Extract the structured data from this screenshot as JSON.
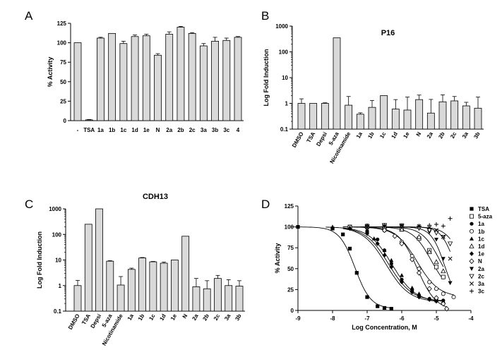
{
  "chart_data": [
    {
      "panel": "A",
      "type": "bar",
      "title": "",
      "xlabel": "",
      "ylabel": "% Activity",
      "ylim": [
        0,
        125
      ],
      "yticks": [
        "0",
        "25",
        "50",
        "75",
        "100",
        "125"
      ],
      "categories": [
        "-",
        "TSA",
        "1a",
        "1b",
        "1c",
        "1d",
        "1e",
        "N",
        "2a",
        "2b",
        "2c",
        "3a",
        "3b",
        "3c",
        "4"
      ],
      "values": [
        100,
        1,
        106,
        112,
        99,
        108,
        109,
        84,
        111,
        120,
        112,
        96,
        102,
        103,
        107
      ],
      "errors": [
        0,
        0.5,
        1,
        0,
        3,
        2,
        2,
        2,
        3,
        1,
        1,
        3,
        5,
        3,
        1
      ]
    },
    {
      "panel": "B",
      "type": "bar",
      "title": "P16",
      "xlabel": "",
      "ylabel": "Log Fold Induction",
      "yscale": "log",
      "ylim": [
        0.1,
        1000
      ],
      "yticks": [
        "0.1",
        "1",
        "10",
        "100",
        "1000"
      ],
      "categories": [
        "DMSO",
        "TSA",
        "Depsi",
        "5-aza",
        "Nicotinamide",
        "1a",
        "1b",
        "1c",
        "1d",
        "1e",
        "N",
        "2a",
        "2b",
        "2c",
        "3a",
        "3b"
      ],
      "values": [
        1.0,
        1.0,
        1.0,
        350,
        0.85,
        0.38,
        0.7,
        2.0,
        0.6,
        0.55,
        1.4,
        0.42,
        1.15,
        1.25,
        0.8,
        0.65
      ],
      "errors": [
        0.5,
        0,
        0.05,
        0,
        1.0,
        0.05,
        0.6,
        0,
        0.8,
        1.2,
        0.7,
        1.0,
        1.0,
        0.6,
        0.3,
        1.1
      ]
    },
    {
      "panel": "C",
      "type": "bar",
      "title": "CDH13",
      "xlabel": "",
      "ylabel": "Log Fold Induction",
      "yscale": "log",
      "ylim": [
        0.1,
        1000
      ],
      "yticks": [
        "0.1",
        "1",
        "10",
        "100",
        "1000"
      ],
      "categories": [
        "DMSO",
        "TSA",
        "Depsi",
        "5-aza",
        "Nicotinamide",
        "1a",
        "1b",
        "1c",
        "1d",
        "1e",
        "N",
        "2a",
        "2b",
        "2c",
        "3a",
        "3b"
      ],
      "values": [
        1.0,
        250,
        1000,
        9,
        1.05,
        4.3,
        12,
        8.5,
        7.5,
        10,
        85,
        0.9,
        0.75,
        1.9,
        1.0,
        0.95
      ],
      "errors": [
        0.6,
        0,
        0,
        0.4,
        1.2,
        0.5,
        0.5,
        0.3,
        0.8,
        0,
        0,
        1.0,
        0.8,
        0.6,
        0.7,
        0.6
      ]
    },
    {
      "panel": "D",
      "type": "scatter",
      "title": "",
      "xlabel": "Log Concentration, M",
      "ylabel": "% Activity",
      "xlim": [
        -9,
        -4
      ],
      "ylim": [
        0,
        125
      ],
      "xticks": [
        "-9",
        "-8",
        "-7",
        "-6",
        "-5",
        "-4"
      ],
      "yticks": [
        "0",
        "25",
        "50",
        "75",
        "100",
        "125"
      ],
      "series": [
        {
          "name": "TSA",
          "marker": "square-filled",
          "x": [
            -9,
            -8,
            -7.7,
            -7.5,
            -7.3,
            -7,
            -6.7,
            -6.5,
            -6.3
          ],
          "y": [
            100,
            98,
            91,
            74,
            45,
            16,
            5,
            3,
            2
          ],
          "fit": {
            "top": 100,
            "bottom": 2,
            "logic50": -7.35,
            "hill": 1.9
          }
        },
        {
          "name": "5-aza",
          "marker": "square-open",
          "x": [
            -7.5,
            -7,
            -6.5,
            -6,
            -5.5,
            -5.2,
            -5,
            -4.8
          ],
          "y": [
            100,
            101,
            100,
            97,
            86,
            72,
            52,
            40
          ],
          "fit": {
            "top": 100,
            "bottom": 20,
            "logic50": -5.15,
            "hill": 1.6
          }
        },
        {
          "name": "1a",
          "marker": "circle-filled",
          "x": [
            -7.5,
            -7,
            -6.7,
            -6.5,
            -6.3,
            -6,
            -5.7,
            -5.5,
            -5.2,
            -5,
            -4.8
          ],
          "y": [
            99,
            95,
            85,
            72,
            56,
            37,
            24,
            18,
            14,
            13,
            12
          ],
          "fit": {
            "top": 100,
            "bottom": 11,
            "logic50": -6.38,
            "hill": 1.3
          }
        },
        {
          "name": "1b",
          "marker": "circle-open",
          "x": [
            -7.5,
            -7,
            -6.5,
            -6,
            -5.7,
            -5.5,
            -5.2,
            -5,
            -4.8,
            -4.5
          ],
          "y": [
            100,
            99,
            96,
            82,
            65,
            50,
            34,
            26,
            20,
            16
          ],
          "fit": {
            "top": 100,
            "bottom": 16,
            "logic50": -5.55,
            "hill": 1.4
          }
        },
        {
          "name": "1c",
          "marker": "triangle-up-filled",
          "x": [
            -8,
            -7.5,
            -7,
            -6.8,
            -6.5,
            -6.3,
            -6,
            -5.7,
            -5.5,
            -5.2,
            -5,
            -4.8
          ],
          "y": [
            100,
            99,
            95,
            86,
            72,
            60,
            42,
            27,
            20,
            14,
            12,
            11
          ],
          "fit": {
            "top": 100,
            "bottom": 10,
            "logic50": -6.28,
            "hill": 1.3
          }
        },
        {
          "name": "1d",
          "marker": "triangle-up-open",
          "x": [
            -7,
            -6.5,
            -6,
            -5.5,
            -5.2,
            -5,
            -4.8
          ],
          "y": [
            101,
            100,
            97,
            88,
            70,
            58,
            47
          ],
          "fit": {
            "top": 100,
            "bottom": 20,
            "logic50": -4.9,
            "hill": 1.7
          }
        },
        {
          "name": "1e",
          "marker": "diamond-filled",
          "x": [
            -7.5,
            -7,
            -6.7,
            -6.5,
            -6.3,
            -6,
            -5.7,
            -5.5,
            -5.2,
            -5
          ],
          "y": [
            98,
            92,
            80,
            66,
            52,
            34,
            22,
            16,
            13,
            11
          ],
          "fit": {
            "top": 100,
            "bottom": 10,
            "logic50": -6.45,
            "hill": 1.3
          }
        },
        {
          "name": "N",
          "marker": "diamond-open",
          "x": [
            -7,
            -6.5,
            -6.2,
            -6,
            -5.7,
            -5.5,
            -5.2,
            -5,
            -4.8,
            -4.7
          ],
          "y": [
            99,
            96,
            89,
            80,
            61,
            45,
            26,
            15,
            8,
            2
          ],
          "fit": {
            "top": 100,
            "bottom": 0,
            "logic50": -5.55,
            "hill": 1.6
          }
        },
        {
          "name": "2a",
          "marker": "triangle-down-filled",
          "x": [
            -7,
            -6.5,
            -6,
            -5.5,
            -5.2,
            -5,
            -4.8,
            -4.6
          ],
          "y": [
            100,
            101,
            100,
            98,
            94,
            85,
            62,
            33
          ],
          "fit": {
            "top": 100,
            "bottom": 5,
            "logic50": -4.75,
            "hill": 2.2
          }
        },
        {
          "name": "2c",
          "marker": "triangle-down-open",
          "x": [
            -7,
            -6.5,
            -6,
            -5.5,
            -5.2,
            -5,
            -4.8,
            -4.6
          ],
          "y": [
            100,
            102,
            101,
            99,
            96,
            93,
            88,
            80
          ],
          "fit": {
            "top": 100,
            "bottom": 40,
            "logic50": -4.35,
            "hill": 2.0
          }
        },
        {
          "name": "3a",
          "marker": "x",
          "x": [
            -7,
            -6.5,
            -6,
            -5.5,
            -5.2,
            -5,
            -4.8,
            -4.6
          ],
          "y": [
            100,
            101,
            102,
            101,
            99,
            96,
            88,
            62
          ],
          "fit": {
            "top": 100,
            "bottom": 20,
            "logic50": -4.5,
            "hill": 2.3
          }
        },
        {
          "name": "3c",
          "marker": "plus",
          "x": [
            -7,
            -6.5,
            -6,
            -5.5,
            -5.2,
            -5,
            -4.8,
            -4.6
          ],
          "y": [
            101,
            102,
            102,
            101,
            102,
            103,
            101,
            110
          ],
          "fit": null
        }
      ]
    }
  ]
}
